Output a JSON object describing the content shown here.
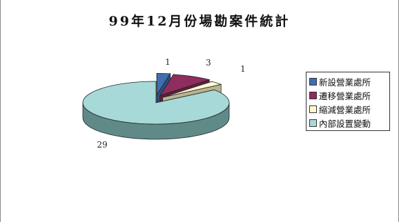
{
  "chart_data": {
    "type": "pie",
    "title": "99年12月份場勘案件統計",
    "categories": [
      "新設營業處所",
      "遷移營業處所",
      "縮減營業處所",
      "內部設置變動"
    ],
    "values": [
      1,
      3,
      1,
      29
    ],
    "colors": [
      "#3f6fb0",
      "#8e2d5e",
      "#fffbd0",
      "#a6d9d8"
    ],
    "side_colors": [
      "#2c4f80",
      "#62203f",
      "#b8b48f",
      "#5f8a88"
    ],
    "legend_position": "right",
    "three_d": true
  }
}
